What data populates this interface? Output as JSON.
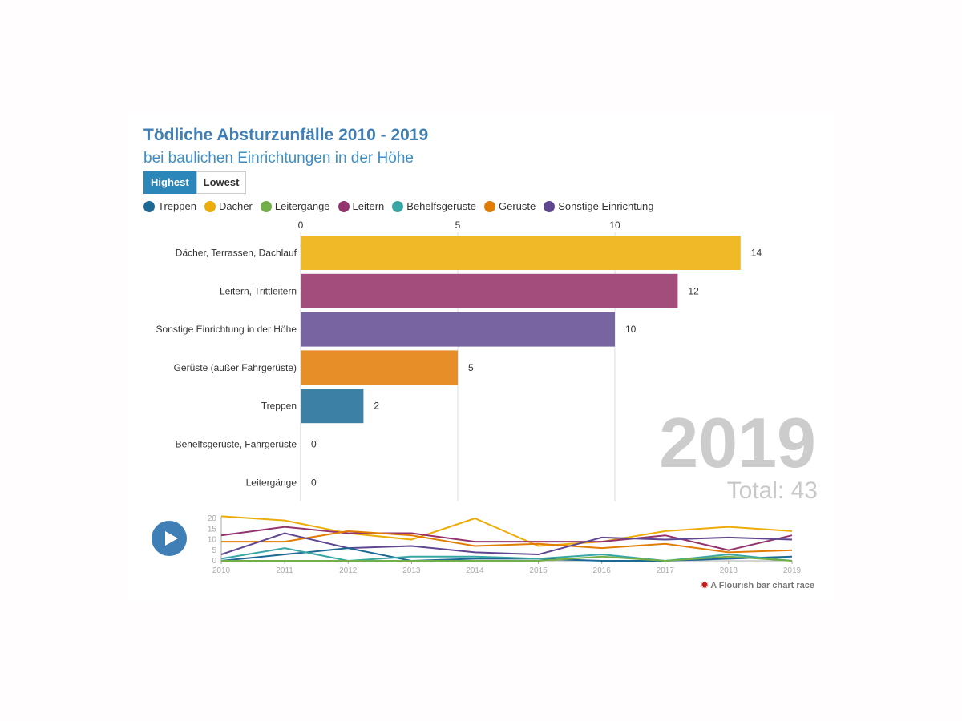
{
  "header": {
    "title": "Tödliche Absturzunfälle 2010 - 2019",
    "subtitle": "bei baulichen Einrichtungen in der Höhe"
  },
  "controls": {
    "highest": "Highest",
    "lowest": "Lowest",
    "active": "Highest"
  },
  "legend": [
    {
      "label": "Treppen",
      "color": "#1d6996"
    },
    {
      "label": "Dächer",
      "color": "#edad08"
    },
    {
      "label": "Leitergänge",
      "color": "#73af48"
    },
    {
      "label": "Leitern",
      "color": "#94346e"
    },
    {
      "label": "Behelfsgerüste",
      "color": "#38a6a5"
    },
    {
      "label": "Gerüste",
      "color": "#e17c05"
    },
    {
      "label": "Sonstige Einrichtung",
      "color": "#5f4690"
    }
  ],
  "chart_data": [
    {
      "type": "bar",
      "orientation": "horizontal",
      "year": "2019",
      "total_label": "Total: 43",
      "xticks": [
        0,
        5,
        10
      ],
      "xlim": [
        0,
        14
      ],
      "categories": [
        "Dächer, Terrassen, Dachlauf",
        "Leitern, Trittleitern",
        "Sonstige Einrichtung in der Höhe",
        "Gerüste (außer Fahrgerüste)",
        "Treppen",
        "Behelfsgerüste, Fahrgerüste",
        "Leitergänge"
      ],
      "values": [
        14,
        12,
        10,
        5,
        2,
        0,
        0
      ],
      "colors": [
        "#f0b928",
        "#a34d7c",
        "#7764a0",
        "#e88e28",
        "#3d80a6",
        "#38a6a5",
        "#73af48"
      ]
    },
    {
      "type": "line",
      "x": [
        2010,
        2011,
        2012,
        2013,
        2014,
        2015,
        2016,
        2017,
        2018,
        2019
      ],
      "ylim": [
        0,
        21
      ],
      "yticks": [
        0,
        5,
        10,
        15,
        20
      ],
      "series": [
        {
          "name": "Dächer",
          "color": "#edad08",
          "values": [
            21,
            19,
            13,
            10,
            20,
            7,
            9,
            14,
            16,
            14
          ]
        },
        {
          "name": "Leitern",
          "color": "#94346e",
          "values": [
            12,
            16,
            13,
            13,
            9,
            9,
            9,
            12,
            5,
            12
          ]
        },
        {
          "name": "Gerüste",
          "color": "#e17c05",
          "values": [
            9,
            9,
            14,
            12,
            7,
            8,
            6,
            8,
            4,
            5
          ]
        },
        {
          "name": "Sonstige Einrichtung",
          "color": "#5f4690",
          "values": [
            3,
            13,
            6,
            7,
            4,
            3,
            11,
            10,
            11,
            10
          ]
        },
        {
          "name": "Treppen",
          "color": "#1d6996",
          "values": [
            0,
            3,
            6,
            0,
            1,
            1,
            0,
            0,
            1,
            2
          ]
        },
        {
          "name": "Behelfsgerüste",
          "color": "#38a6a5",
          "values": [
            1,
            6,
            0,
            2,
            2,
            1,
            3,
            0,
            3,
            0
          ]
        },
        {
          "name": "Leitergänge",
          "color": "#73af48",
          "values": [
            0,
            0,
            0,
            0,
            0,
            0,
            2,
            0,
            2,
            0
          ]
        }
      ]
    }
  ],
  "credit": "A Flourish bar chart race"
}
